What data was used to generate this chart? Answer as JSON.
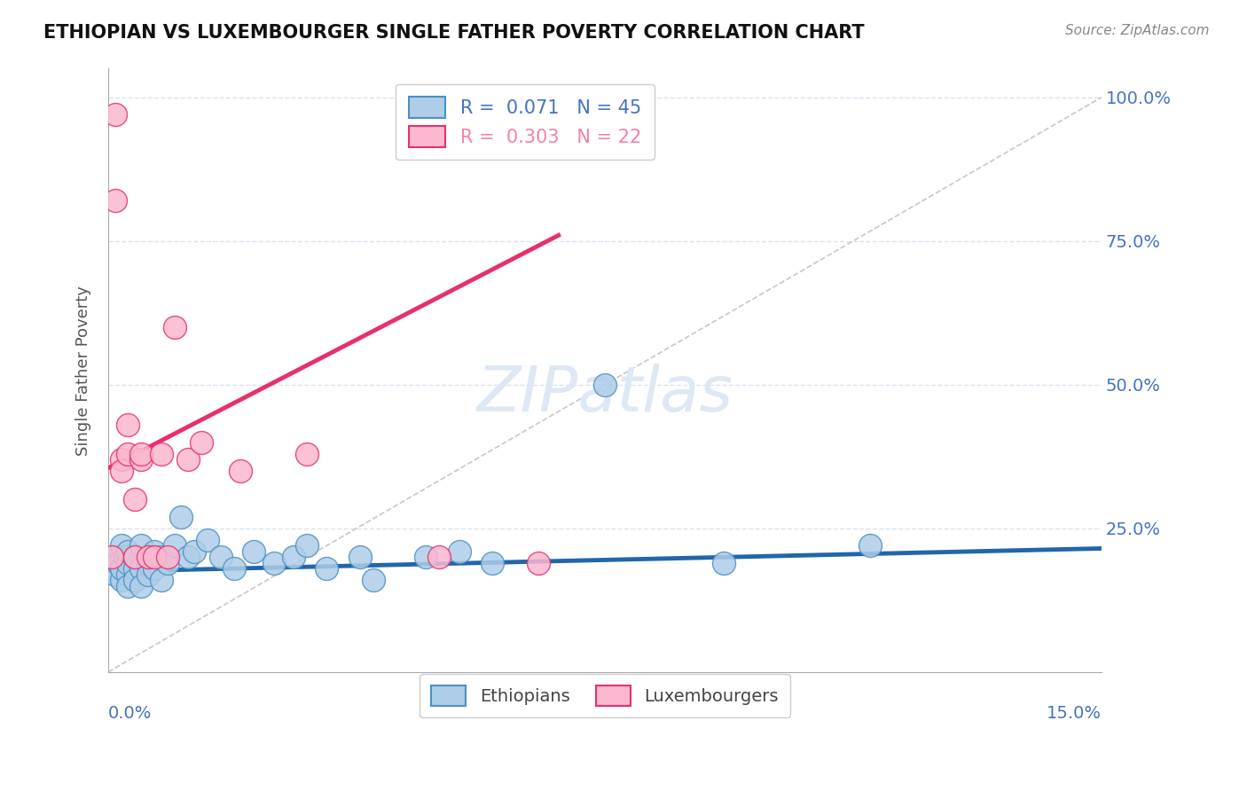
{
  "title": "ETHIOPIAN VS LUXEMBOURGER SINGLE FATHER POVERTY CORRELATION CHART",
  "source": "Source: ZipAtlas.com",
  "ylabel": "Single Father Poverty",
  "xlim": [
    0.0,
    0.15
  ],
  "ylim": [
    0.0,
    1.05
  ],
  "ytick_positions": [
    0.25,
    0.5,
    0.75,
    1.0
  ],
  "ytick_labels": [
    "25.0%",
    "50.0%",
    "75.0%",
    "100.0%"
  ],
  "blue_color": "#6baed6",
  "blue_fill": "#aecde8",
  "blue_edge": "#4a90c4",
  "pink_color": "#f77fb1",
  "pink_fill": "#fbb8d0",
  "pink_edge": "#e8306a",
  "blue_line_color": "#2166ac",
  "pink_line_color": "#e8306a",
  "ref_line_color": "#c8c8c8",
  "grid_color": "#d8e4f0",
  "label_color": "#4472c4",
  "watermark_color": "#dde8f4",
  "ethiopians_x": [
    0.0005,
    0.001,
    0.001,
    0.0015,
    0.002,
    0.002,
    0.002,
    0.0025,
    0.003,
    0.003,
    0.003,
    0.003,
    0.004,
    0.004,
    0.004,
    0.005,
    0.005,
    0.005,
    0.006,
    0.006,
    0.007,
    0.007,
    0.008,
    0.008,
    0.009,
    0.01,
    0.011,
    0.012,
    0.013,
    0.015,
    0.017,
    0.019,
    0.022,
    0.025,
    0.028,
    0.03,
    0.033,
    0.038,
    0.04,
    0.048,
    0.053,
    0.058,
    0.075,
    0.093,
    0.115
  ],
  "ethiopians_y": [
    0.18,
    0.2,
    0.17,
    0.19,
    0.16,
    0.22,
    0.18,
    0.2,
    0.17,
    0.19,
    0.15,
    0.21,
    0.18,
    0.2,
    0.16,
    0.22,
    0.18,
    0.15,
    0.19,
    0.17,
    0.21,
    0.18,
    0.2,
    0.16,
    0.19,
    0.22,
    0.27,
    0.2,
    0.21,
    0.23,
    0.2,
    0.18,
    0.21,
    0.19,
    0.2,
    0.22,
    0.18,
    0.2,
    0.16,
    0.2,
    0.21,
    0.19,
    0.5,
    0.19,
    0.22
  ],
  "luxembourgers_x": [
    0.0005,
    0.001,
    0.001,
    0.002,
    0.002,
    0.003,
    0.003,
    0.004,
    0.004,
    0.005,
    0.005,
    0.006,
    0.007,
    0.008,
    0.009,
    0.01,
    0.012,
    0.014,
    0.02,
    0.03,
    0.05,
    0.065
  ],
  "luxembourgers_y": [
    0.2,
    0.97,
    0.82,
    0.37,
    0.35,
    0.43,
    0.38,
    0.3,
    0.2,
    0.37,
    0.38,
    0.2,
    0.2,
    0.38,
    0.2,
    0.6,
    0.37,
    0.4,
    0.35,
    0.38,
    0.2,
    0.19
  ],
  "lux_line_x0": 0.0,
  "lux_line_y0": 0.355,
  "lux_line_x1": 0.068,
  "lux_line_y1": 0.76,
  "eth_line_x0": 0.0,
  "eth_line_y0": 0.175,
  "eth_line_x1": 0.15,
  "eth_line_y1": 0.215
}
